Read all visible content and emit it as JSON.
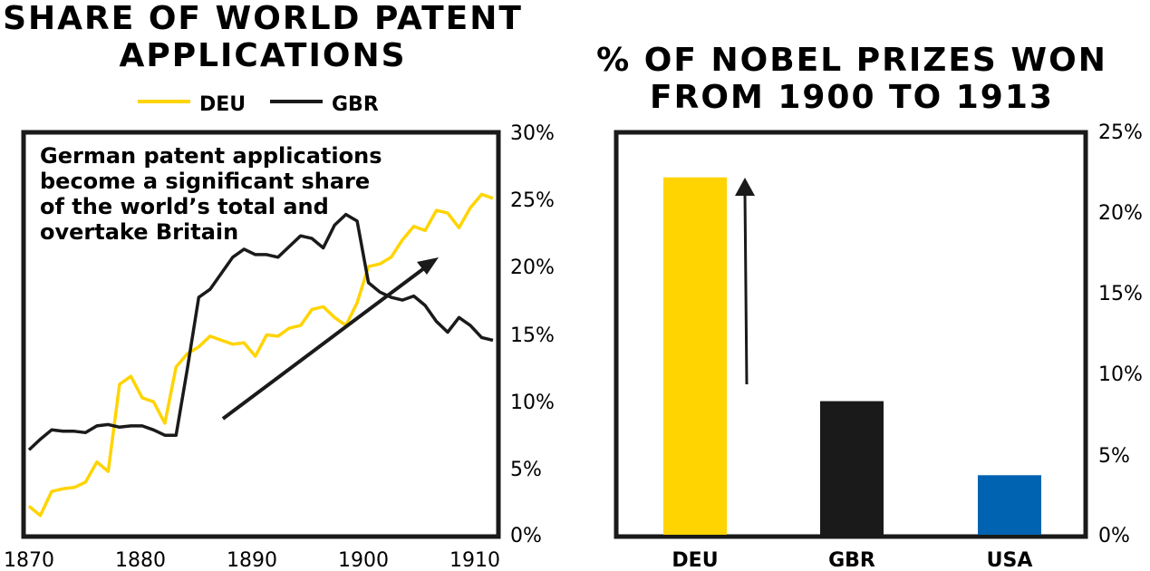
{
  "chart_data": [
    {
      "type": "line",
      "title": [
        "SHARE OF WORLD PATENT",
        "APPLICATIONS"
      ],
      "xlabel": "",
      "ylabel": "",
      "xlim": [
        1870,
        1911
      ],
      "ylim": [
        0,
        30
      ],
      "x_ticks": [
        "1870",
        "1880",
        "1890",
        "1900",
        "1910"
      ],
      "y_ticks": [
        "0%",
        "5%",
        "10%",
        "15%",
        "20%",
        "25%",
        "30%"
      ],
      "annotation": [
        "German patent applications",
        "become a significant share",
        "of the world’s total and",
        "overtake Britain"
      ],
      "x": [
        1870,
        1871,
        1872,
        1873,
        1874,
        1875,
        1876,
        1877,
        1878,
        1879,
        1880,
        1881,
        1882,
        1883,
        1884,
        1885,
        1886,
        1887,
        1888,
        1889,
        1890,
        1891,
        1892,
        1893,
        1894,
        1895,
        1896,
        1897,
        1898,
        1899,
        1900,
        1901,
        1902,
        1903,
        1904,
        1905,
        1906,
        1907,
        1908,
        1909,
        1910,
        1911
      ],
      "series": [
        {
          "name": "DEU",
          "color": "#FFD400",
          "values": [
            2.0,
            1.3,
            3.1,
            3.3,
            3.4,
            3.8,
            5.3,
            4.6,
            11.1,
            11.7,
            10.1,
            9.8,
            8.2,
            12.4,
            13.4,
            13.9,
            14.7,
            14.4,
            14.1,
            14.2,
            13.2,
            14.8,
            14.7,
            15.3,
            15.5,
            16.7,
            16.9,
            16.1,
            15.5,
            17.2,
            19.9,
            20.1,
            20.6,
            21.9,
            22.9,
            22.6,
            24.1,
            23.9,
            22.8,
            24.3,
            25.3,
            25.0
          ]
        },
        {
          "name": "GBR",
          "color": "#1a1a1a",
          "values": [
            6.2,
            7.0,
            7.7,
            7.6,
            7.6,
            7.5,
            8.0,
            8.1,
            7.9,
            8.0,
            8.0,
            7.7,
            7.3,
            7.3,
            12.3,
            17.6,
            18.2,
            19.4,
            20.6,
            21.2,
            20.8,
            20.8,
            20.6,
            21.4,
            22.2,
            22.0,
            21.3,
            23.0,
            23.8,
            23.3,
            18.7,
            18.0,
            17.6,
            17.4,
            17.7,
            17.0,
            15.8,
            15.0,
            16.1,
            15.5,
            14.6,
            14.4
          ]
        }
      ]
    },
    {
      "type": "bar",
      "title": [
        "% OF NOBEL PRIZES WON",
        "FROM 1900 TO 1913"
      ],
      "xlabel": "",
      "ylabel": "",
      "ylim": [
        0,
        25
      ],
      "y_ticks": [
        "0%",
        "5%",
        "10%",
        "15%",
        "20%",
        "25%"
      ],
      "categories": [
        "DEU",
        "GBR",
        "USA"
      ],
      "values": [
        22.2,
        8.3,
        3.7
      ],
      "colors": [
        "#FFD400",
        "#1a1a1a",
        "#0063B2"
      ]
    }
  ]
}
